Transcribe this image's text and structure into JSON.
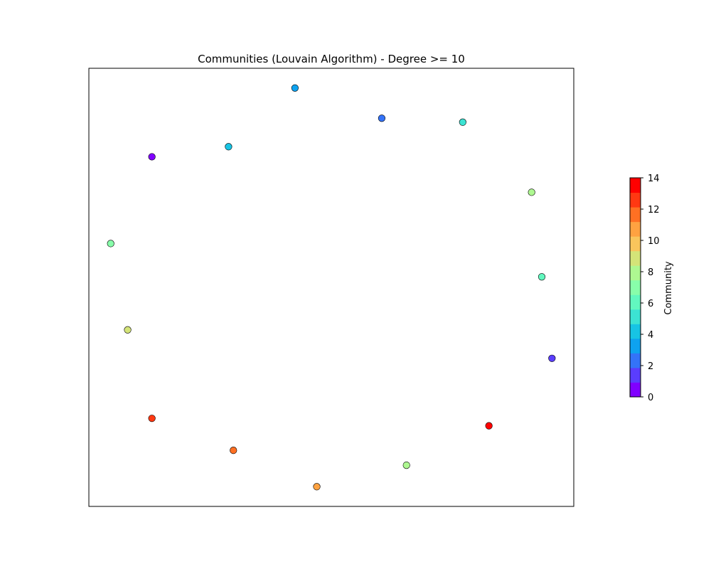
{
  "chart_data": {
    "type": "scatter",
    "title": "Communities (Louvain Algorithm) - Degree >= 10",
    "xlabel": "",
    "ylabel": "",
    "xlim": [
      0,
      1
    ],
    "ylim": [
      0,
      1
    ],
    "grid": false,
    "points": [
      {
        "x": 0.425,
        "y": 0.955,
        "community": 3
      },
      {
        "x": 0.604,
        "y": 0.886,
        "community": 2
      },
      {
        "x": 0.771,
        "y": 0.877,
        "community": 5
      },
      {
        "x": 0.288,
        "y": 0.821,
        "community": 4
      },
      {
        "x": 0.13,
        "y": 0.798,
        "community": 0
      },
      {
        "x": 0.913,
        "y": 0.717,
        "community": 8
      },
      {
        "x": 0.045,
        "y": 0.6,
        "community": 7
      },
      {
        "x": 0.934,
        "y": 0.524,
        "community": 6
      },
      {
        "x": 0.08,
        "y": 0.403,
        "community": 9
      },
      {
        "x": 0.955,
        "y": 0.338,
        "community": 1
      },
      {
        "x": 0.13,
        "y": 0.201,
        "community": 13
      },
      {
        "x": 0.825,
        "y": 0.184,
        "community": 14
      },
      {
        "x": 0.298,
        "y": 0.128,
        "community": 12
      },
      {
        "x": 0.655,
        "y": 0.094,
        "community": 8
      },
      {
        "x": 0.47,
        "y": 0.045,
        "community": 11
      }
    ],
    "colorbar": {
      "label": "Community",
      "min": 0,
      "max": 14,
      "ticks": [
        "0",
        "2",
        "4",
        "6",
        "8",
        "10",
        "12",
        "14"
      ],
      "colors": [
        "#8000ff",
        "#5a3dfe",
        "#3473f8",
        "#0ea2ef",
        "#17c4e4",
        "#3ce3d3",
        "#62f8bf",
        "#88feaa",
        "#aef891",
        "#d4e478",
        "#f9c55c",
        "#ffa241",
        "#ff7023",
        "#ff3812",
        "#ff0000"
      ]
    }
  }
}
